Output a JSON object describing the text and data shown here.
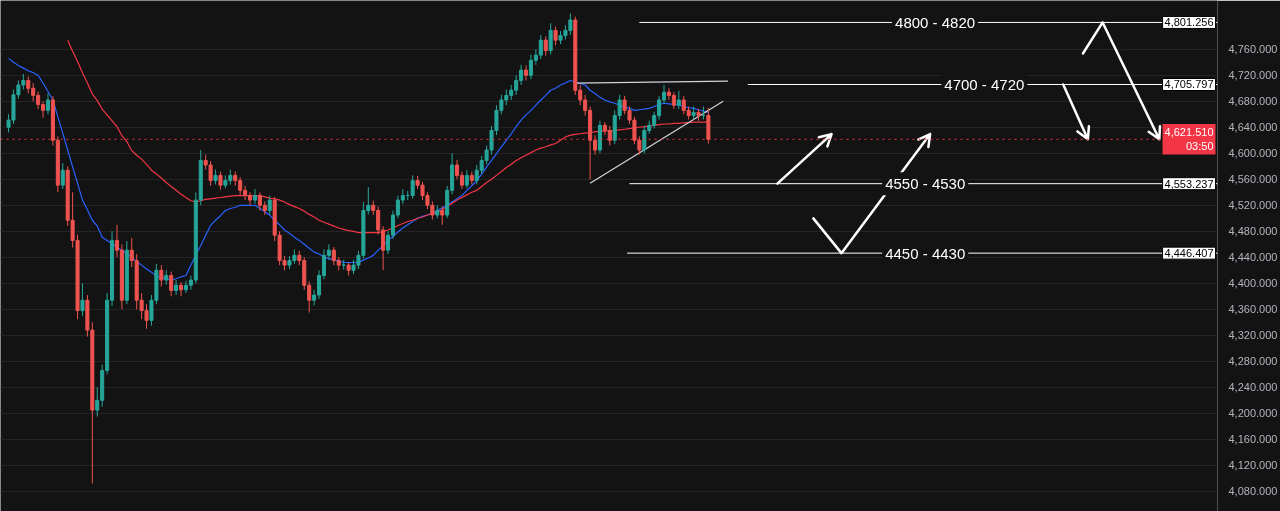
{
  "chart_data": {
    "type": "candlestick",
    "categories": [
      null,
      null,
      null,
      null,
      null,
      null,
      null,
      null,
      null,
      null,
      null,
      null,
      null,
      null,
      null,
      null,
      null,
      null,
      null,
      null,
      null,
      null,
      null,
      null,
      null,
      null,
      null,
      null,
      null,
      null,
      null,
      null,
      null,
      null,
      null,
      null,
      null,
      null,
      null,
      null,
      null,
      null,
      null,
      null,
      null,
      null,
      null,
      null,
      null,
      null,
      null,
      null,
      null,
      null,
      null,
      null,
      null,
      null,
      null,
      null,
      null,
      null,
      null,
      null,
      null,
      null,
      null,
      null,
      null,
      null,
      null,
      null,
      null,
      null,
      null,
      null,
      null,
      null,
      null,
      null,
      null,
      null,
      null,
      null,
      null,
      null,
      null,
      null,
      null,
      null,
      null,
      null,
      null,
      null,
      null,
      null,
      null,
      null,
      null,
      null,
      null,
      null,
      null,
      null,
      null,
      null,
      null,
      null,
      null,
      null,
      null,
      null,
      null,
      null,
      null,
      null,
      null,
      null,
      null,
      null,
      null,
      null,
      null,
      null,
      null,
      null,
      null,
      null,
      null,
      null,
      null,
      null,
      null,
      null,
      null,
      null,
      null,
      null,
      null,
      null,
      null,
      null,
      null,
      null,
      null,
      null,
      null
    ],
    "colors": [
      "#26a69a",
      "#26a69a",
      "#26a69a",
      "#26a69a",
      "#ef5350",
      "#ef5350",
      "#ef5350",
      "#ef5350",
      "#26a69a",
      "#ef5350",
      "#ef5350",
      "#26a69a",
      "#ef5350",
      "#ef5350",
      "#ef5350",
      "#26a69a",
      "#ef5350",
      "#ef5350",
      "#26a69a",
      "#26a69a",
      "#26a69a",
      "#26a69a",
      "#ef5350",
      "#ef5350",
      "#26a69a",
      "#ef5350",
      "#ef5350",
      "#ef5350",
      "#ef5350",
      "#26a69a",
      "#26a69a",
      "#ef5350",
      "#26a69a",
      "#ef5350",
      "#26a69a",
      "#ef5350",
      "#26a69a",
      "#26a69a",
      "#26a69a",
      "#26a69a",
      "#ef5350",
      "#ef5350",
      "#26a69a",
      "#ef5350",
      "#26a69a",
      "#26a69a",
      "#ef5350",
      "#ef5350",
      "#ef5350",
      "#ef5350",
      "#26a69a",
      "#ef5350",
      "#ef5350",
      "#26a69a",
      "#ef5350",
      "#ef5350",
      "#ef5350",
      "#26a69a",
      "#26a69a",
      "#ef5350",
      "#ef5350",
      "#ef5350",
      "#26a69a",
      "#26a69a",
      "#26a69a",
      "#26a69a",
      "#ef5350",
      "#ef5350",
      "#26a69a",
      "#ef5350",
      "#26a69a",
      "#26a69a",
      "#26a69a",
      "#26a69a",
      "#ef5350",
      "#ef5350",
      "#ef5350",
      "#26a69a",
      "#26a69a",
      "#26a69a",
      "#26a69a",
      "#26a69a",
      "#26a69a",
      "#ef5350",
      "#ef5350",
      "#ef5350",
      "#ef5350",
      "#26a69a",
      "#ef5350",
      "#26a69a",
      "#26a69a",
      "#ef5350",
      "#ef5350",
      "#26a69a",
      "#ef5350",
      "#26a69a",
      "#26a69a",
      "#26a69a",
      "#26a69a",
      "#26a69a",
      "#26a69a",
      "#26a69a",
      "#26a69a",
      "#26a69a",
      "#26a69a",
      "#ef5350",
      "#26a69a",
      "#26a69a",
      "#26a69a",
      "#ef5350",
      "#26a69a",
      "#ef5350",
      "#26a69a",
      "#26a69a",
      "#26a69a",
      "#ef5350",
      "#ef5350",
      "#ef5350",
      "#ef5350",
      "#ef5350",
      "#26a69a",
      "#ef5350",
      "#ef5350",
      "#26a69a",
      "#26a69a",
      "#ef5350",
      "#ef5350",
      "#ef5350",
      "#ef5350",
      "#26a69a",
      "#26a69a",
      "#26a69a",
      "#26a69a",
      "#26a69a",
      "#ef5350",
      "#ef5350",
      "#26a69a",
      "#ef5350",
      "#ef5350",
      "#26a69a",
      "#ef5350",
      "#26a69a",
      "#ef5350",
      null,
      null,
      null,
      null
    ],
    "ohlc": [
      [
        4640,
        4660,
        4632,
        4651
      ],
      [
        4651,
        4698,
        4645,
        4690
      ],
      [
        4690,
        4712,
        4684,
        4705
      ],
      [
        4705,
        4722,
        4698,
        4712
      ],
      [
        4712,
        4718,
        4692,
        4700
      ],
      [
        4700,
        4708,
        4680,
        4689
      ],
      [
        4689,
        4695,
        4668,
        4675
      ],
      [
        4675,
        4680,
        4655,
        4666
      ],
      [
        4666,
        4692,
        4660,
        4682
      ],
      [
        4682,
        4688,
        4612,
        4620
      ],
      [
        4620,
        4626,
        4540,
        4551
      ],
      [
        4551,
        4585,
        4545,
        4574
      ],
      [
        4574,
        4580,
        4488,
        4497
      ],
      [
        4497,
        4540,
        4455,
        4466
      ],
      [
        4466,
        4475,
        4345,
        4358
      ],
      [
        4358,
        4400,
        4350,
        4374
      ],
      [
        4374,
        4382,
        4318,
        4328
      ],
      [
        4328,
        4340,
        4092,
        4205
      ],
      [
        4205,
        4240,
        4195,
        4220
      ],
      [
        4220,
        4275,
        4210,
        4266
      ],
      [
        4266,
        4385,
        4260,
        4374
      ],
      [
        4374,
        4480,
        4365,
        4466
      ],
      [
        4466,
        4490,
        4440,
        4451
      ],
      [
        4451,
        4460,
        4360,
        4374
      ],
      [
        4374,
        4465,
        4368,
        4451
      ],
      [
        4451,
        4470,
        4425,
        4435
      ],
      [
        4435,
        4445,
        4360,
        4374
      ],
      [
        4374,
        4385,
        4345,
        4358
      ],
      [
        4358,
        4368,
        4330,
        4343
      ],
      [
        4343,
        4382,
        4335,
        4374
      ],
      [
        4374,
        4430,
        4368,
        4420
      ],
      [
        4420,
        4428,
        4395,
        4405
      ],
      [
        4405,
        4420,
        4398,
        4412
      ],
      [
        4412,
        4418,
        4380,
        4389
      ],
      [
        4389,
        4405,
        4382,
        4397
      ],
      [
        4397,
        4402,
        4380,
        4390
      ],
      [
        4390,
        4404,
        4385,
        4397
      ],
      [
        4397,
        4412,
        4390,
        4405
      ],
      [
        4405,
        4540,
        4400,
        4528
      ],
      [
        4528,
        4605,
        4520,
        4589
      ],
      [
        4589,
        4598,
        4575,
        4582
      ],
      [
        4582,
        4588,
        4550,
        4558
      ],
      [
        4558,
        4575,
        4552,
        4566
      ],
      [
        4566,
        4572,
        4544,
        4551
      ],
      [
        4551,
        4566,
        4546,
        4558
      ],
      [
        4558,
        4575,
        4552,
        4566
      ],
      [
        4566,
        4572,
        4550,
        4558
      ],
      [
        4558,
        4563,
        4536,
        4543
      ],
      [
        4543,
        4550,
        4528,
        4535
      ],
      [
        4535,
        4540,
        4520,
        4528
      ],
      [
        4528,
        4545,
        4522,
        4535
      ],
      [
        4535,
        4540,
        4512,
        4520
      ],
      [
        4520,
        4526,
        4505,
        4512
      ],
      [
        4512,
        4535,
        4506,
        4528
      ],
      [
        4528,
        4533,
        4465,
        4474
      ],
      [
        4474,
        4480,
        4428,
        4435
      ],
      [
        4435,
        4442,
        4420,
        4428
      ],
      [
        4428,
        4442,
        4422,
        4435
      ],
      [
        4435,
        4452,
        4430,
        4443
      ],
      [
        4443,
        4450,
        4428,
        4435
      ],
      [
        4435,
        4440,
        4390,
        4397
      ],
      [
        4397,
        4403,
        4355,
        4374
      ],
      [
        4374,
        4390,
        4366,
        4382
      ],
      [
        4382,
        4420,
        4376,
        4412
      ],
      [
        4412,
        4452,
        4406,
        4443
      ],
      [
        4443,
        4460,
        4436,
        4451
      ],
      [
        4451,
        4456,
        4428,
        4435
      ],
      [
        4435,
        4440,
        4420,
        4428
      ],
      [
        4428,
        4436,
        4421,
        4428
      ],
      [
        4428,
        4432,
        4412,
        4420
      ],
      [
        4420,
        4436,
        4414,
        4428
      ],
      [
        4428,
        4450,
        4422,
        4443
      ],
      [
        4443,
        4525,
        4438,
        4512
      ],
      [
        4512,
        4548,
        4506,
        4520
      ],
      [
        4520,
        4527,
        4505,
        4512
      ],
      [
        4512,
        4518,
        4475,
        4482
      ],
      [
        4482,
        4488,
        4420,
        4451
      ],
      [
        4451,
        4480,
        4445,
        4474
      ],
      [
        4474,
        4512,
        4468,
        4505
      ],
      [
        4505,
        4535,
        4500,
        4528
      ],
      [
        4528,
        4545,
        4522,
        4535
      ],
      [
        4535,
        4542,
        4528,
        4535
      ],
      [
        4535,
        4566,
        4530,
        4558
      ],
      [
        4558,
        4565,
        4545,
        4551
      ],
      [
        4551,
        4556,
        4528,
        4535
      ],
      [
        4535,
        4540,
        4514,
        4520
      ],
      [
        4520,
        4526,
        4498,
        4505
      ],
      [
        4505,
        4520,
        4500,
        4512
      ],
      [
        4512,
        4518,
        4490,
        4505
      ],
      [
        4505,
        4550,
        4500,
        4543
      ],
      [
        4543,
        4600,
        4537,
        4582
      ],
      [
        4582,
        4590,
        4560,
        4566
      ],
      [
        4566,
        4572,
        4545,
        4551
      ],
      [
        4551,
        4574,
        4546,
        4566
      ],
      [
        4566,
        4572,
        4552,
        4558
      ],
      [
        4558,
        4582,
        4552,
        4574
      ],
      [
        4574,
        4596,
        4568,
        4589
      ],
      [
        4589,
        4612,
        4583,
        4605
      ],
      [
        4605,
        4642,
        4598,
        4635
      ],
      [
        4635,
        4674,
        4628,
        4666
      ],
      [
        4666,
        4690,
        4660,
        4682
      ],
      [
        4682,
        4698,
        4674,
        4689
      ],
      [
        4689,
        4705,
        4682,
        4697
      ],
      [
        4697,
        4720,
        4690,
        4712
      ],
      [
        4712,
        4736,
        4705,
        4728
      ],
      [
        4728,
        4735,
        4712,
        4720
      ],
      [
        4720,
        4752,
        4714,
        4743
      ],
      [
        4743,
        4760,
        4736,
        4751
      ],
      [
        4751,
        4782,
        4745,
        4774
      ],
      [
        4774,
        4780,
        4750,
        4758
      ],
      [
        4758,
        4800,
        4752,
        4789
      ],
      [
        4789,
        4795,
        4766,
        4774
      ],
      [
        4774,
        4788,
        4768,
        4781
      ],
      [
        4781,
        4797,
        4775,
        4789
      ],
      [
        4789,
        4815,
        4782,
        4805
      ],
      [
        4805,
        4810,
        4690,
        4697
      ],
      [
        4697,
        4705,
        4674,
        4682
      ],
      [
        4682,
        4690,
        4658,
        4666
      ],
      [
        4666,
        4672,
        4560,
        4620
      ],
      [
        4620,
        4628,
        4598,
        4605
      ],
      [
        4605,
        4650,
        4600,
        4643
      ],
      [
        4643,
        4648,
        4628,
        4635
      ],
      [
        4635,
        4642,
        4612,
        4620
      ],
      [
        4620,
        4666,
        4614,
        4658
      ],
      [
        4658,
        4690,
        4652,
        4682
      ],
      [
        4682,
        4688,
        4660,
        4666
      ],
      [
        4666,
        4672,
        4645,
        4651
      ],
      [
        4651,
        4656,
        4614,
        4620
      ],
      [
        4620,
        4626,
        4598,
        4605
      ],
      [
        4605,
        4642,
        4600,
        4635
      ],
      [
        4635,
        4650,
        4630,
        4643
      ],
      [
        4643,
        4664,
        4638,
        4658
      ],
      [
        4658,
        4688,
        4652,
        4682
      ],
      [
        4682,
        4705,
        4676,
        4694
      ],
      [
        4694,
        4700,
        4682,
        4689
      ],
      [
        4689,
        4694,
        4668,
        4674
      ],
      [
        4674,
        4696,
        4668,
        4682
      ],
      [
        4682,
        4688,
        4660,
        4666
      ],
      [
        4666,
        4672,
        4652,
        4658
      ],
      [
        4658,
        4672,
        4652,
        4663
      ],
      [
        4663,
        4668,
        4650,
        4658
      ],
      [
        4658,
        4672,
        4652,
        4658
      ],
      [
        4658,
        4670,
        4615,
        4621.5
      ],
      null,
      null,
      null,
      null
    ],
    "series": [
      {
        "type": "line",
        "color": "#2962ff",
        "values": [
          4746,
          4740,
          4735,
          4731,
          4727,
          4724,
          4720,
          4708,
          4695,
          4682,
          4656,
          4631,
          4605,
          4579,
          4554,
          4528,
          4513,
          4497,
          4488,
          4471,
          4466,
          4461,
          4456,
          4450,
          4446,
          4440,
          4433,
          4428,
          4422,
          4417,
          4411,
          4409,
          4407,
          4405,
          4407,
          4410,
          4412,
          4428,
          4443,
          4458,
          4474,
          4489,
          4497,
          4504,
          4512,
          4515,
          4517,
          4520,
          4520,
          4520,
          4520,
          4515,
          4510,
          4505,
          4497,
          4490,
          4482,
          4477,
          4471,
          4466,
          4460,
          4454,
          4448,
          4445,
          4441,
          4438,
          4436,
          4434,
          4432,
          4432,
          4432,
          4432,
          4436,
          4439,
          4443,
          4451,
          4458,
          4466,
          4472,
          4479,
          4485,
          4490,
          4495,
          4500,
          4503,
          4505,
          4508,
          4512,
          4516,
          4520,
          4525,
          4530,
          4535,
          4543,
          4550,
          4558,
          4568,
          4579,
          4589,
          4599,
          4610,
          4620,
          4630,
          4641,
          4651,
          4659,
          4666,
          4674,
          4682,
          4689,
          4697,
          4700,
          4705,
          4708,
          4712,
          4710,
          4707,
          4705,
          4697,
          4692,
          4686,
          4682,
          4679,
          4677,
          4674,
          4671,
          4669,
          4666,
          4667,
          4668,
          4669,
          4672,
          4675,
          4677,
          4676,
          4675,
          4674,
          4672,
          4670,
          4669,
          4667,
          4665,
          4663,
          null,
          null,
          null,
          null
        ]
      },
      {
        "type": "line",
        "color": "#f23645",
        "values": [
          null,
          null,
          null,
          null,
          null,
          null,
          null,
          null,
          null,
          null,
          null,
          null,
          4774,
          4757,
          4741,
          4724,
          4708,
          4691,
          4681,
          4668,
          4659,
          4650,
          4641,
          4627,
          4618,
          4604,
          4597,
          4591,
          4583,
          4574,
          4568,
          4562,
          4555,
          4549,
          4543,
          4537,
          4532,
          4527,
          4525,
          4527,
          4529,
          4530,
          4531,
          4532,
          4533,
          4534,
          4535,
          4535,
          4535,
          4535,
          4535,
          4535,
          4533,
          4531,
          4530,
          4528,
          4525,
          4521,
          4518,
          4515,
          4511,
          4506,
          4502,
          4497,
          4494,
          4491,
          4488,
          4485,
          4483,
          4481,
          4480,
          4478,
          4478,
          4478,
          4478,
          4478,
          4480,
          4482,
          4485,
          4489,
          4492,
          4495,
          4497,
          4500,
          4502,
          4505,
          4507,
          4509,
          4513,
          4518,
          4523,
          4528,
          4532,
          4536,
          4540,
          4543,
          4549,
          4555,
          4560,
          4566,
          4572,
          4578,
          4583,
          4589,
          4593,
          4597,
          4601,
          4605,
          4608,
          4610,
          4613,
          4615,
          4620,
          4625,
          4628,
          4629,
          4630,
          4631,
          4632,
          4633,
          4634,
          4634,
          4635,
          4635,
          4636,
          4637,
          4638,
          4639,
          4640,
          4641,
          4642,
          4643,
          4644,
          4645,
          4645,
          4646,
          4646,
          4647,
          4647,
          4648,
          4648,
          4648,
          4648,
          null,
          null,
          null,
          null
        ]
      },
      {
        "type": "line",
        "color": "#d1d4dc",
        "values": [
          null,
          null,
          null,
          null,
          null,
          null,
          null,
          null,
          null,
          null,
          null,
          null,
          null,
          null,
          null,
          null,
          null,
          null,
          null,
          null,
          null,
          null,
          null,
          null,
          null,
          null,
          null,
          null,
          null,
          null,
          null,
          null,
          null,
          null,
          null,
          null,
          null,
          null,
          null,
          null,
          null,
          null,
          null,
          null,
          null,
          null,
          null,
          null,
          null,
          null,
          null,
          null,
          null,
          null,
          null,
          null,
          null,
          null,
          null,
          null,
          null,
          null,
          null,
          null,
          null,
          null,
          null,
          null,
          null,
          null,
          null,
          null,
          null,
          null,
          null,
          null,
          null,
          null,
          null,
          null,
          null,
          null,
          null,
          null,
          null,
          null,
          null,
          null,
          null,
          null,
          null,
          null,
          null,
          null,
          null,
          null,
          null,
          null,
          null,
          null,
          null,
          null,
          null,
          null,
          null,
          null,
          null,
          null,
          null,
          null,
          null,
          null,
          null,
          null,
          null,
          4708,
          null,
          null,
          null,
          null,
          null,
          null,
          null,
          null,
          null,
          null,
          null,
          null,
          null,
          null,
          null,
          null,
          null,
          null,
          null,
          null,
          null,
          null,
          null,
          null,
          null,
          null,
          null,
          null,
          null,
          null,
          4711
        ]
      },
      {
        "type": "line",
        "color": "#d1d4dc",
        "values": [
          null,
          null,
          null,
          null,
          null,
          null,
          null,
          null,
          null,
          null,
          null,
          null,
          null,
          null,
          null,
          null,
          null,
          null,
          null,
          null,
          null,
          null,
          null,
          null,
          null,
          null,
          null,
          null,
          null,
          null,
          null,
          null,
          null,
          null,
          null,
          null,
          null,
          null,
          null,
          null,
          null,
          null,
          null,
          null,
          null,
          null,
          null,
          null,
          null,
          null,
          null,
          null,
          null,
          null,
          null,
          null,
          null,
          null,
          null,
          null,
          null,
          null,
          null,
          null,
          null,
          null,
          null,
          null,
          null,
          null,
          null,
          null,
          null,
          null,
          null,
          null,
          null,
          null,
          null,
          null,
          null,
          null,
          null,
          null,
          null,
          null,
          null,
          null,
          null,
          null,
          null,
          null,
          null,
          null,
          null,
          null,
          null,
          null,
          null,
          null,
          null,
          null,
          null,
          null,
          null,
          null,
          null,
          null,
          null,
          null,
          null,
          null,
          null,
          null,
          null,
          null,
          null,
          null,
          4554,
          null,
          null,
          null,
          null,
          null,
          null,
          null,
          null,
          null,
          null,
          null,
          null,
          null,
          null,
          null,
          null,
          null,
          null,
          null,
          null,
          null,
          null,
          null,
          null,
          null,
          null,
          4680,
          null
        ]
      }
    ],
    "ylim": [
      4049,
      4835
    ],
    "yticks": [
      {
        "value": 4080,
        "label": "4,080.000"
      },
      {
        "value": 4120,
        "label": "4,120.000"
      },
      {
        "value": 4160,
        "label": "4,160.000"
      },
      {
        "value": 4200,
        "label": "4,200.000"
      },
      {
        "value": 4240,
        "label": "4,240.000"
      },
      {
        "value": 4280,
        "label": "4,280.000"
      },
      {
        "value": 4320,
        "label": "4,320.000"
      },
      {
        "value": 4360,
        "label": "4,360.000"
      },
      {
        "value": 4400,
        "label": "4,400.000"
      },
      {
        "value": 4440,
        "label": "4,440.000"
      },
      {
        "value": 4480,
        "label": "4,480.000"
      },
      {
        "value": 4520,
        "label": "4,520.000"
      },
      {
        "value": 4560,
        "label": "4,560.000"
      },
      {
        "value": 4600,
        "label": "4,600.000"
      },
      {
        "value": 4640,
        "label": "4,640.000"
      },
      {
        "value": 4680,
        "label": "4,680.000"
      },
      {
        "value": 4720,
        "label": "4,720.000"
      },
      {
        "value": 4760,
        "label": "4,760.000"
      }
    ],
    "tick_labels": "y",
    "grid": "y",
    "ref_lines": [
      {
        "axis": "y",
        "value": 4801.256,
        "label": "4,801.256",
        "color": "#ffffff"
      },
      {
        "axis": "y",
        "value": 4705.797,
        "label": "4,705.797",
        "color": "#ffffff"
      },
      {
        "axis": "y",
        "value": 4553.237,
        "label": "4,553.237",
        "color": "#ffffff"
      },
      {
        "axis": "y",
        "value": 4446.407,
        "label": "4,446.407",
        "color": "#ffffff"
      },
      {
        "axis": "y",
        "value": 4621.51,
        "label": "4,621.510\n03:50",
        "color": "#f23645",
        "line_style": "dotted"
      }
    ],
    "annotations": [
      "4800 - 4820",
      "4700 - 4720",
      "4550 - 4530",
      "4450 - 4430"
    ]
  }
}
